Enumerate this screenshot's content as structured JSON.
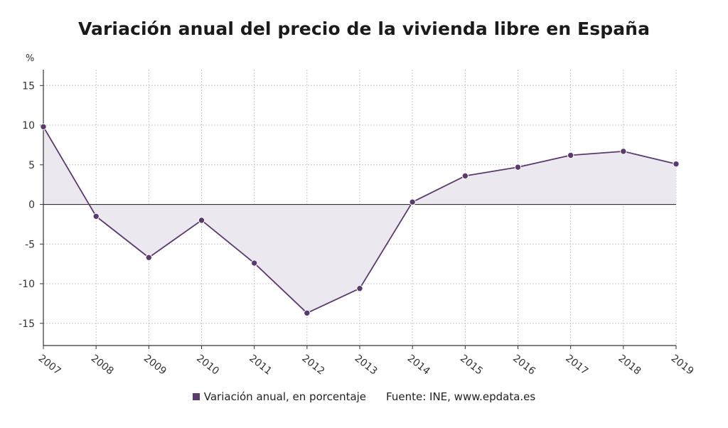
{
  "chart_data": {
    "type": "area",
    "title": "Variación anual del precio de la vivienda libre en España",
    "ylabel": "%",
    "xlabel": "",
    "ylim": [
      -17.8,
      17
    ],
    "yticks": [
      15,
      10,
      5,
      0,
      -5,
      -10,
      -15
    ],
    "ytick_labels": [
      "15",
      "10",
      "5",
      "0",
      "-5",
      "-10",
      "-15"
    ],
    "categories": [
      "2007",
      "2008",
      "2009",
      "2010",
      "2011",
      "2012",
      "2013",
      "2014",
      "2015",
      "2016",
      "2017",
      "2018",
      "2019"
    ],
    "series": [
      {
        "name": "Variación anual, en porcentaje",
        "values": [
          9.8,
          -1.5,
          -6.7,
          -2.0,
          -7.4,
          -13.7,
          -10.6,
          0.3,
          3.6,
          4.7,
          6.2,
          6.7,
          5.1
        ]
      }
    ],
    "grid": true,
    "legend_position": "bottom-center",
    "source": "Fuente: INE, www.epdata.es",
    "colors": {
      "line": "#5b3a6e",
      "fill": "#ece8f0",
      "zero_line": "#333333",
      "grid": "#c8c8c8"
    }
  }
}
